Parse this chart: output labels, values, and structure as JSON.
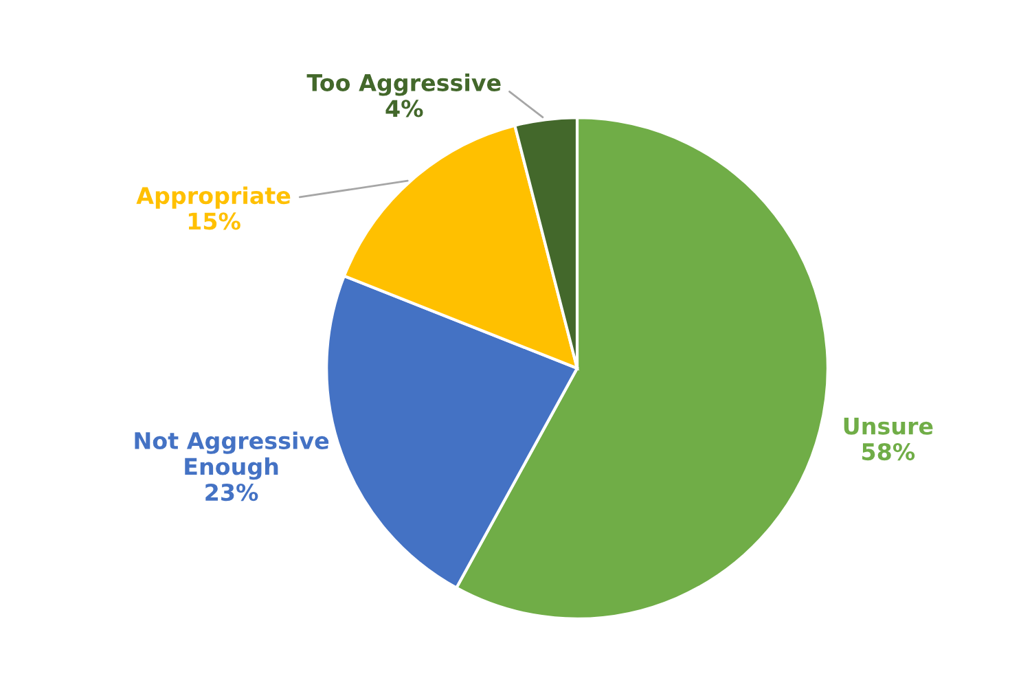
{
  "chart_data": {
    "type": "pie",
    "categories": [
      "Unsure",
      "Not Aggressive Enough",
      "Appropriate",
      "Too Aggressive"
    ],
    "values": [
      58,
      23,
      15,
      4
    ],
    "colors": [
      "#70ad47",
      "#4472c4",
      "#ffc000",
      "#43682b"
    ],
    "value_labels": [
      "58%",
      "23%",
      "15%",
      "4%"
    ],
    "legend": false
  }
}
